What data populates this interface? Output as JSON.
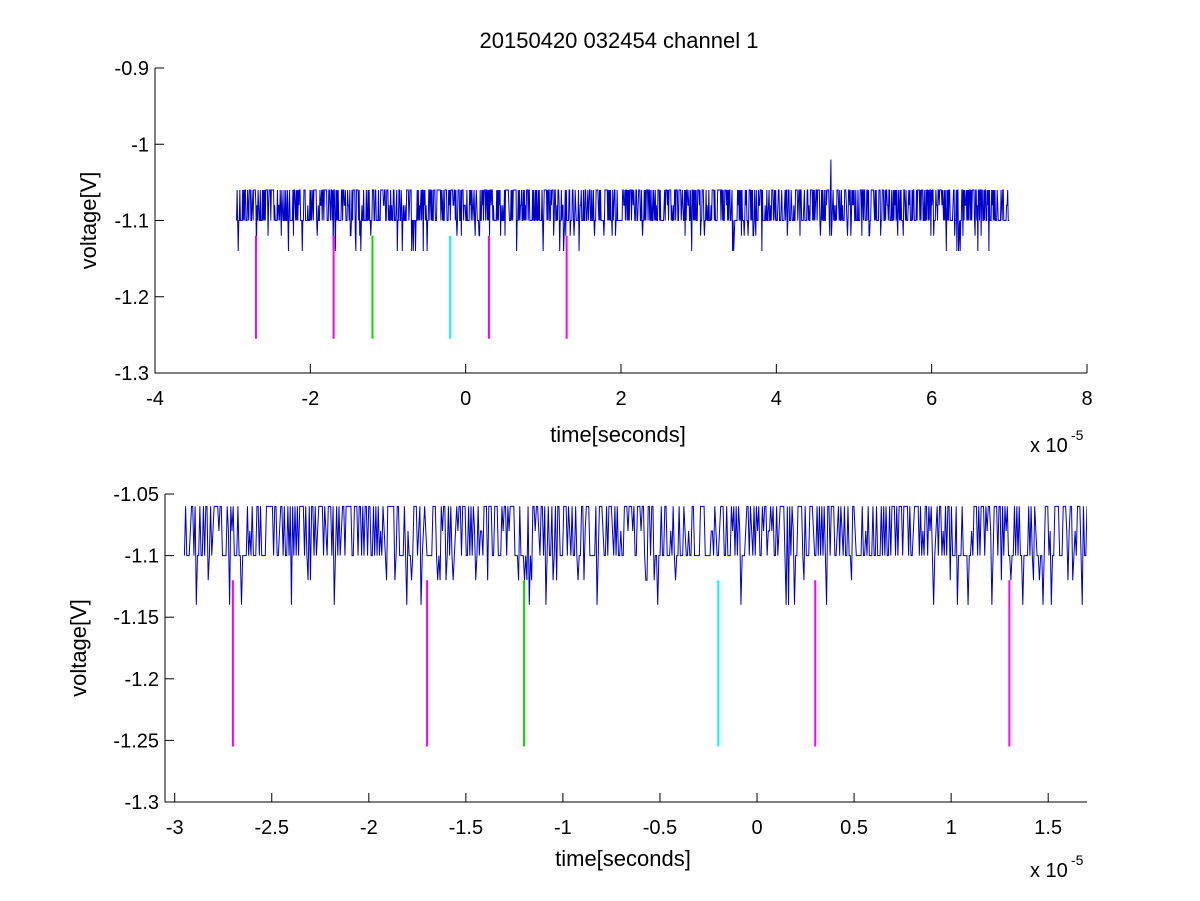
{
  "figure": {
    "title": "20150420 032454 channel 1",
    "colors": {
      "signal": "#0000cc",
      "magenta": "#ff00ff",
      "green": "#00dd00",
      "cyan": "#00ffff",
      "axis": "#000000"
    }
  },
  "chart_data": [
    {
      "type": "line",
      "title": "20150420 032454 channel 1",
      "xlabel": "time[seconds]",
      "ylabel": "voltage[V]",
      "x_exponent_label": "x 10",
      "x_exponent": "-5",
      "xlim": [
        -4,
        8
      ],
      "ylim": [
        -1.3,
        -0.9
      ],
      "xticks": [
        -4,
        -2,
        0,
        2,
        4,
        6,
        8
      ],
      "xtick_labels": [
        "-4",
        "-2",
        "0",
        "2",
        "4",
        "6",
        "8"
      ],
      "yticks": [
        -1.3,
        -1.2,
        -1.1,
        -1.0,
        -0.9
      ],
      "ytick_labels": [
        "-1.3",
        "-1.2",
        "-1.1",
        "-1",
        "-0.9"
      ],
      "grid": false,
      "series": [
        {
          "color": "#0000cc",
          "x_range": [
            -2.95,
            7.0
          ],
          "levels": [
            -1.06,
            -1.08,
            -1.1,
            -1.12,
            -1.14
          ],
          "spikes": [
            {
              "x": 4.7,
              "y": -1.02
            }
          ]
        }
      ],
      "markers": [
        {
          "x": -2.7,
          "y_top": -1.12,
          "y_bottom": -1.255,
          "color": "#ff00ff"
        },
        {
          "x": -1.7,
          "y_top": -1.12,
          "y_bottom": -1.255,
          "color": "#ff00ff"
        },
        {
          "x": -1.2,
          "y_top": -1.12,
          "y_bottom": -1.255,
          "color": "#00dd00"
        },
        {
          "x": -0.2,
          "y_top": -1.12,
          "y_bottom": -1.255,
          "color": "#00ffff"
        },
        {
          "x": 0.3,
          "y_top": -1.12,
          "y_bottom": -1.255,
          "color": "#ff00ff"
        },
        {
          "x": 1.3,
          "y_top": -1.12,
          "y_bottom": -1.255,
          "color": "#ff00ff"
        }
      ]
    },
    {
      "type": "line",
      "title": "",
      "xlabel": "time[seconds]",
      "ylabel": "voltage[V]",
      "x_exponent_label": "x 10",
      "x_exponent": "-5",
      "xlim": [
        -3.05,
        1.7
      ],
      "ylim": [
        -1.3,
        -1.05
      ],
      "xticks": [
        -3,
        -2.5,
        -2,
        -1.5,
        -1,
        -0.5,
        0,
        0.5,
        1,
        1.5
      ],
      "xtick_labels": [
        "-3",
        "-2.5",
        "-2",
        "-1.5",
        "-1",
        "-0.5",
        "0",
        "0.5",
        "1",
        "1.5"
      ],
      "yticks": [
        -1.3,
        -1.25,
        -1.2,
        -1.15,
        -1.1,
        -1.05
      ],
      "ytick_labels": [
        "-1.3",
        "-1.25",
        "-1.2",
        "-1.15",
        "-1.1",
        "-1.05"
      ],
      "grid": false,
      "series": [
        {
          "color": "#0000cc",
          "x_range": [
            -2.95,
            1.7
          ],
          "levels": [
            -1.06,
            -1.08,
            -1.1,
            -1.12,
            -1.14
          ],
          "spikes": []
        }
      ],
      "markers": [
        {
          "x": -2.7,
          "y_top": -1.12,
          "y_bottom": -1.255,
          "color": "#ff00ff"
        },
        {
          "x": -1.7,
          "y_top": -1.12,
          "y_bottom": -1.255,
          "color": "#ff00ff"
        },
        {
          "x": -1.2,
          "y_top": -1.12,
          "y_bottom": -1.255,
          "color": "#00dd00"
        },
        {
          "x": -0.2,
          "y_top": -1.12,
          "y_bottom": -1.255,
          "color": "#00ffff"
        },
        {
          "x": 0.3,
          "y_top": -1.12,
          "y_bottom": -1.255,
          "color": "#ff00ff"
        },
        {
          "x": 1.3,
          "y_top": -1.12,
          "y_bottom": -1.255,
          "color": "#ff00ff"
        }
      ]
    }
  ]
}
